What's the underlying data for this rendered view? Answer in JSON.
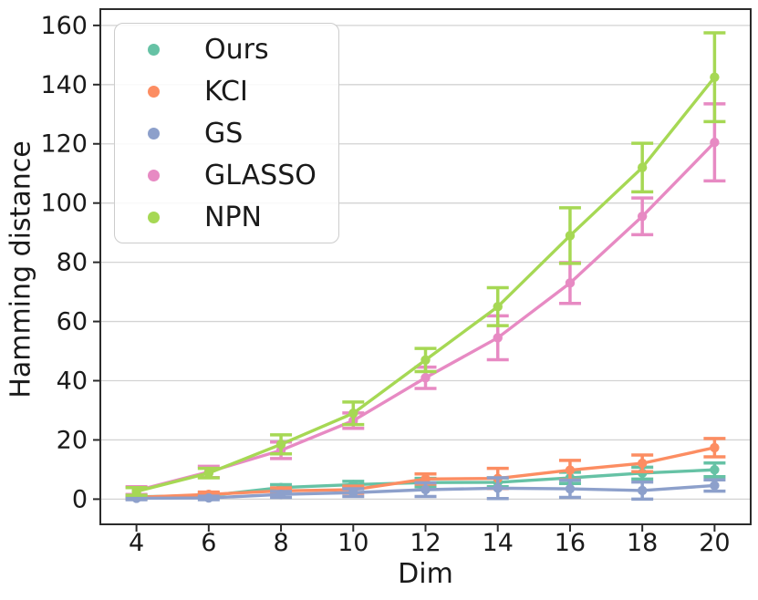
{
  "figure": {
    "background": "#ffffff",
    "text_color": "#1a1a1a",
    "axis_color": "#2b2b2b",
    "grid_color": "#d3d3d3"
  },
  "chart_data": {
    "type": "line",
    "title": "",
    "xlabel": "Dim",
    "ylabel": "Hamming distance",
    "x": [
      4,
      6,
      8,
      10,
      12,
      14,
      16,
      18,
      20
    ],
    "xticks": [
      4,
      6,
      8,
      10,
      12,
      14,
      16,
      18,
      20
    ],
    "yticks": [
      0,
      20,
      40,
      60,
      80,
      100,
      120,
      140,
      160
    ],
    "xlim": [
      3,
      21
    ],
    "ylim": [
      -8.5,
      165.5
    ],
    "grid": "horizontal-only",
    "legend_position": "upper-left",
    "legend_entries": [
      "Ours",
      "KCI",
      "GS",
      "GLASSO",
      "NPN"
    ],
    "series": [
      {
        "name": "Ours",
        "color": "#66c2a5",
        "values": [
          0.8,
          1.2,
          3.9,
          4.9,
          5.6,
          5.7,
          7.2,
          8.8,
          9.9
        ],
        "errors": [
          0.6,
          0.8,
          1.0,
          1.1,
          1.4,
          1.5,
          1.9,
          2.0,
          2.3
        ]
      },
      {
        "name": "KCI",
        "color": "#fc8d62",
        "values": [
          0.6,
          1.6,
          2.8,
          3.2,
          6.8,
          7.0,
          9.8,
          12.1,
          17.4
        ],
        "errors": [
          0.5,
          0.8,
          1.0,
          1.2,
          1.7,
          3.4,
          3.3,
          2.8,
          3.1
        ]
      },
      {
        "name": "GS",
        "color": "#8da0cb",
        "values": [
          0.3,
          0.4,
          1.6,
          2.2,
          3.2,
          3.7,
          3.5,
          2.9,
          4.6
        ],
        "errors": [
          0.5,
          0.6,
          1.0,
          1.3,
          2.3,
          3.5,
          2.9,
          2.9,
          1.9
        ]
      },
      {
        "name": "GLASSO",
        "color": "#e78ac3",
        "values": [
          2.9,
          9.2,
          16.5,
          26.5,
          41.0,
          54.5,
          73.0,
          95.5,
          120.5
        ],
        "errors": [
          1.3,
          1.9,
          2.8,
          2.6,
          3.6,
          7.4,
          6.9,
          6.2,
          13.0
        ]
      },
      {
        "name": "NPN",
        "color": "#a6d854",
        "values": [
          2.6,
          8.8,
          18.5,
          29.0,
          47.0,
          65.0,
          89.0,
          112.0,
          142.5
        ],
        "errors": [
          1.3,
          1.6,
          3.2,
          3.8,
          3.9,
          6.4,
          9.4,
          8.2,
          15.0
        ]
      }
    ]
  }
}
